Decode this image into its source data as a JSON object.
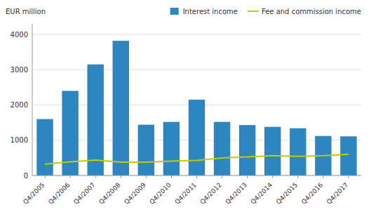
{
  "chart_data": {
    "type": "bar",
    "ylabel": "EUR million",
    "categories": [
      "Q4/2005",
      "Q4/2006",
      "Q4/2007",
      "Q4/2008",
      "Q4/2009",
      "Q4/2010",
      "Q4/2011",
      "Q4/2012",
      "Q4/2013",
      "Q4/2014",
      "Q4/2015",
      "Q4/2016",
      "Q4/2017"
    ],
    "series": [
      {
        "name": "Interest income",
        "type": "bar",
        "color": "#2e86c1",
        "values": [
          1600,
          2400,
          3150,
          3820,
          1440,
          1520,
          2150,
          1520,
          1430,
          1380,
          1340,
          1120,
          1110
        ]
      },
      {
        "name": "Fee and commission income",
        "type": "line",
        "color": "#bfcc00",
        "values": [
          320,
          390,
          440,
          380,
          380,
          410,
          430,
          500,
          530,
          560,
          540,
          560,
          600
        ]
      }
    ],
    "ylim": [
      0,
      4300
    ],
    "yticks": [
      0,
      1000,
      2000,
      3000,
      4000
    ],
    "grid": true,
    "legend": "upper right"
  }
}
